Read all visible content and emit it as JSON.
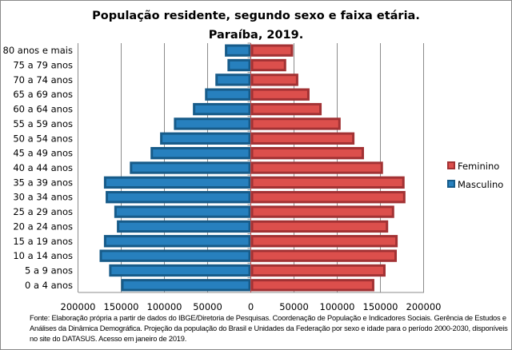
{
  "chart_data": {
    "type": "bar",
    "orientation": "horizontal-pyramid",
    "title": "População residente, segundo sexo e faixa etária.",
    "subtitle": "Paraíba, 2019.",
    "categories": [
      "80 anos e mais",
      "75 a 79 anos",
      "70 a 74 anos",
      "65 a 69 anos",
      "60 a 64 anos",
      "55 a 59 anos",
      "50 a 54 anos",
      "45 a 49 anos",
      "40 a 44 anos",
      "35 a 39 anos",
      "30 a 34 anos",
      "25 a 29 anos",
      "20 a 24 anos",
      "15 a 19 anos",
      "10 a 14 anos",
      "5 a 9 anos",
      "0 a 4 anos"
    ],
    "series": [
      {
        "name": "Feminino",
        "color": "#dc4f4c",
        "stroke": "#a23234",
        "side": "right",
        "values": [
          49000,
          41000,
          55000,
          68000,
          82000,
          104000,
          120000,
          131000,
          153000,
          178000,
          179000,
          166000,
          159000,
          170000,
          169000,
          156000,
          143000
        ]
      },
      {
        "name": "Masculino",
        "color": "#2780be",
        "stroke": "#175b89",
        "side": "left",
        "values": [
          30000,
          27000,
          41000,
          53000,
          67000,
          89000,
          105000,
          116000,
          140000,
          170000,
          168000,
          158000,
          155000,
          170000,
          175000,
          164000,
          150000
        ]
      }
    ],
    "xlim": [
      -200000,
      200000
    ],
    "xticks": [
      "200000",
      "150000",
      "100000",
      "50000",
      "0",
      "50000",
      "100000",
      "150000",
      "200000"
    ],
    "grid": true,
    "legend": "right"
  },
  "footnote": "Fonte:  Elaboração própria a partir de dados  do  IBGE/Diretoria de Pesquisas. Coordenação de População e Indicadores Sociais. Gerência de Estudos e Análises da Dinâmica Demográfica. Projeção da população do Brasil e Unidades da Federação por sexo e idade para o período 2000-2030, disponíveis no site do DATASUS. Acesso em  janeiro de 2019."
}
